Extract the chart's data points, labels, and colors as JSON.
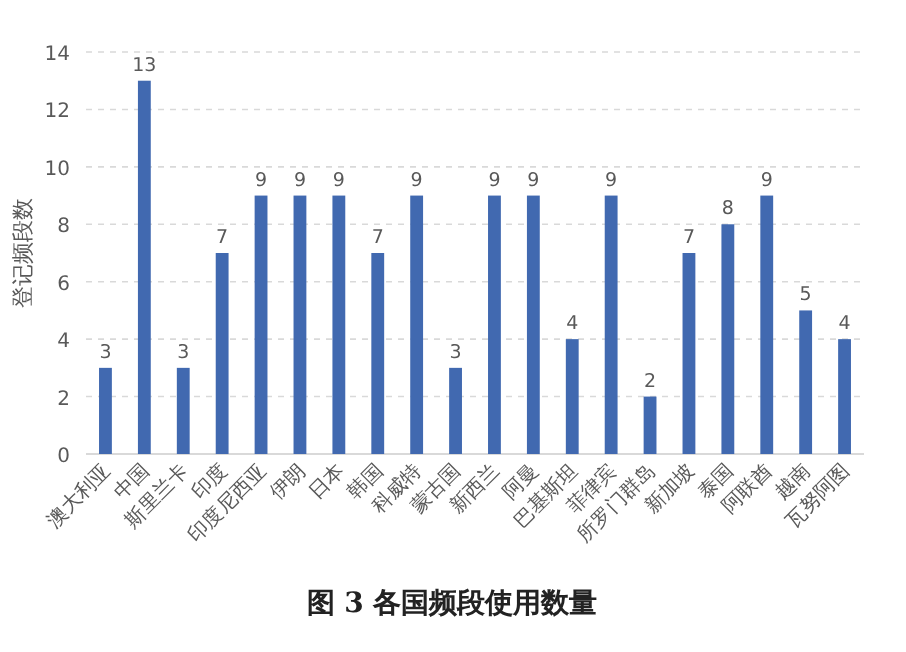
{
  "chart_data": {
    "type": "bar",
    "title": "图 3 各国频段使用数量",
    "ylabel": "登记频段数",
    "categories": [
      "澳大利亚",
      "中国",
      "斯里兰卡",
      "印度",
      "印度尼西亚",
      "伊朗",
      "日本",
      "韩国",
      "科威特",
      "蒙古国",
      "新西兰",
      "阿曼",
      "巴基斯坦",
      "菲律宾",
      "所罗门群岛",
      "新加坡",
      "泰国",
      "阿联酋",
      "越南",
      "瓦努阿图"
    ],
    "values": [
      3,
      13,
      3,
      7,
      9,
      9,
      9,
      7,
      9,
      3,
      9,
      9,
      4,
      9,
      2,
      7,
      8,
      9,
      5,
      4
    ],
    "color": "#4169b0",
    "ylim": [
      0,
      14
    ],
    "yticks": [
      0,
      2,
      4,
      6,
      8,
      10,
      12,
      14
    ],
    "grid": "y",
    "data_labels": true
  }
}
